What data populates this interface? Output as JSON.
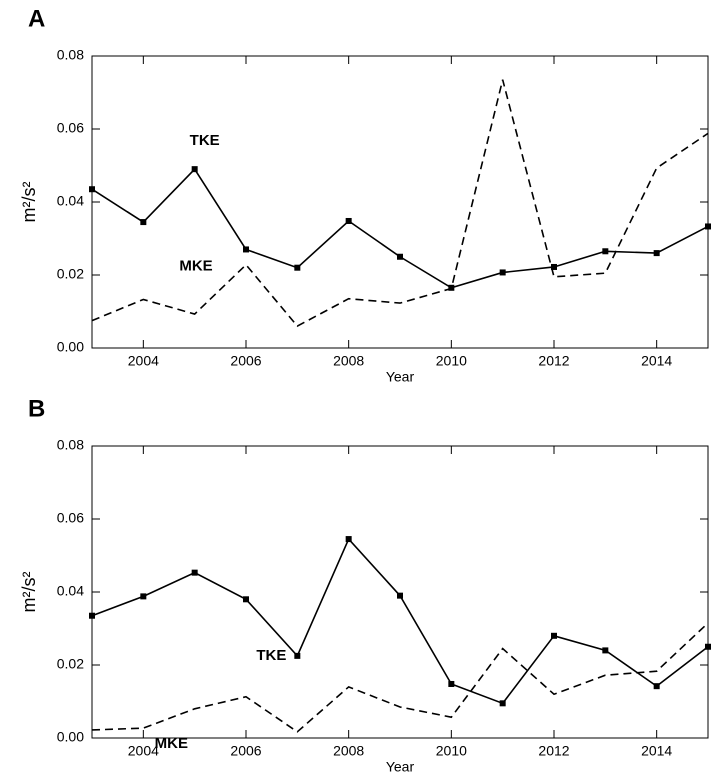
{
  "chart_data": [
    {
      "type": "line",
      "title": "A",
      "xlabel": "Year",
      "ylabel": "m²/s²",
      "x": [
        2003,
        2004,
        2005,
        2006,
        2007,
        2008,
        2009,
        2010,
        2011,
        2012,
        2013,
        2014,
        2015
      ],
      "series": [
        {
          "name": "TKE",
          "color": "#000000",
          "dashed": false,
          "marker": "square",
          "values": [
            0.0435,
            0.0345,
            0.049,
            0.027,
            0.022,
            0.0348,
            0.025,
            0.0165,
            0.0207,
            0.0222,
            0.0265,
            0.026,
            0.0333
          ]
        },
        {
          "name": "MKE",
          "color": "#000000",
          "dashed": true,
          "marker": "none",
          "values": [
            0.0075,
            0.0133,
            0.0093,
            0.0228,
            0.006,
            0.0135,
            0.0123,
            0.0163,
            0.0735,
            0.0195,
            0.0205,
            0.0493,
            0.0588
          ]
        }
      ],
      "xlim": [
        2003,
        2015
      ],
      "xticks": [
        2004,
        2006,
        2008,
        2010,
        2012,
        2014
      ],
      "ylim": [
        0,
        0.08
      ],
      "yticks": [
        {
          "value": 0,
          "label": "0.00"
        },
        {
          "value": 0.02,
          "label": "0.02"
        },
        {
          "value": 0.04,
          "label": "0.04"
        },
        {
          "value": 0.06,
          "label": "0.06"
        },
        {
          "value": 0.08,
          "label": "0.08"
        }
      ]
    },
    {
      "type": "line",
      "title": "B",
      "xlabel": "Year",
      "ylabel": "m²/s²",
      "x": [
        2003,
        2004,
        2005,
        2006,
        2007,
        2008,
        2009,
        2010,
        2011,
        2012,
        2013,
        2014,
        2015
      ],
      "series": [
        {
          "name": "TKE",
          "color": "#000000",
          "dashed": false,
          "marker": "square",
          "values": [
            0.0335,
            0.0388,
            0.0453,
            0.038,
            0.0225,
            0.0545,
            0.039,
            0.0148,
            0.0095,
            0.028,
            0.024,
            0.0142,
            0.025
          ]
        },
        {
          "name": "MKE",
          "color": "#000000",
          "dashed": true,
          "marker": "none",
          "values": [
            0.0022,
            0.0027,
            0.008,
            0.0113,
            0.0017,
            0.014,
            0.0085,
            0.0057,
            0.0245,
            0.012,
            0.0172,
            0.0183,
            0.0315
          ]
        }
      ],
      "xlim": [
        2003,
        2015
      ],
      "xticks": [
        2004,
        2006,
        2008,
        2010,
        2012,
        2014
      ],
      "ylim": [
        0,
        0.08
      ],
      "yticks": [
        {
          "value": 0,
          "label": "0.00"
        },
        {
          "value": 0.02,
          "label": "0.02"
        },
        {
          "value": 0.04,
          "label": "0.04"
        },
        {
          "value": 0.06,
          "label": "0.06"
        },
        {
          "value": 0.08,
          "label": "0.08"
        }
      ]
    }
  ]
}
